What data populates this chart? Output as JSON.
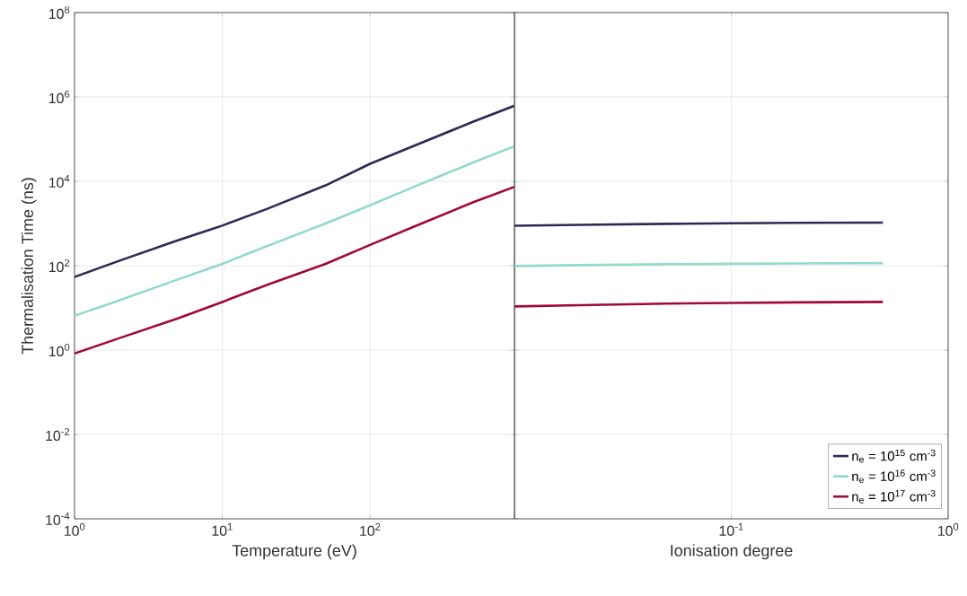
{
  "chart_data": [
    {
      "type": "line",
      "xlabel": "Temperature (eV)",
      "ylabel": "Thermalisation Time (ns)",
      "log": "xy",
      "grid": true,
      "xlim": [
        1,
        950
      ],
      "ylim": [
        0.0001,
        100000000
      ],
      "xticks": [
        {
          "value": 1,
          "label": "10$^{0}$"
        },
        {
          "value": 10,
          "label": "10$^{1}$"
        },
        {
          "value": 100,
          "label": "10$^{2}$"
        }
      ],
      "yticks": [
        {
          "value": 0.0001,
          "label": "10$^{-4}$"
        },
        {
          "value": 0.01,
          "label": "10$^{-2}$"
        },
        {
          "value": 1,
          "label": "10$^{0}$"
        },
        {
          "value": 100,
          "label": "10$^{2}$"
        },
        {
          "value": 10000,
          "label": "10$^{4}$"
        },
        {
          "value": 1000000,
          "label": "10$^{6}$"
        },
        {
          "value": 100000000,
          "label": "10$^{8}$"
        }
      ],
      "x": [
        1,
        2,
        5,
        10,
        20,
        50,
        100,
        200,
        500,
        950
      ],
      "series": [
        {
          "color": "#2b2a55",
          "values": [
            54,
            130,
            400,
            890,
            2200,
            8000,
            26000,
            70000,
            260000,
            620000
          ]
        },
        {
          "color": "#92d9d0",
          "values": [
            6.5,
            15,
            47,
            110,
            290,
            1000,
            2700,
            7500,
            28000,
            68000
          ]
        },
        {
          "color": "#a0073f",
          "values": [
            0.83,
            1.9,
            5.6,
            13.8,
            35,
            110,
            310,
            850,
            3200,
            7400
          ]
        }
      ]
    },
    {
      "type": "line",
      "xlabel": "Ionisation degree",
      "log": "xy",
      "grid": true,
      "tick_labels": "x",
      "legend": "bottom right",
      "xlim": [
        0.01,
        1
      ],
      "ylim": [
        0.0001,
        100000000
      ],
      "xticks": [
        {
          "value": 0.01,
          "label": null
        },
        {
          "value": 0.1,
          "label": "10$^{-1}$"
        },
        {
          "value": 1,
          "label": "10$^{0}$"
        }
      ],
      "yticks": [
        0.0001,
        0.01,
        1,
        100,
        10000,
        1000000,
        100000000
      ],
      "x": [
        0.01,
        0.02,
        0.05,
        0.1,
        0.2,
        0.5
      ],
      "series": [
        {
          "name": "n$_{e}$ = 10$^{15}$ cm$^{-3}$",
          "color": "#2b2a55",
          "values": [
            885,
            930,
            980,
            1010,
            1035,
            1050
          ]
        },
        {
          "name": "n$_{e}$ = 10$^{16}$ cm$^{-3}$",
          "color": "#92d9d0",
          "values": [
            98,
            103,
            108,
            111,
            113,
            115
          ]
        },
        {
          "name": "n$_{e}$ = 10$^{17}$ cm$^{-3}$",
          "color": "#a0073f",
          "values": [
            10.8,
            11.6,
            12.6,
            13.1,
            13.5,
            13.8
          ]
        }
      ]
    }
  ]
}
